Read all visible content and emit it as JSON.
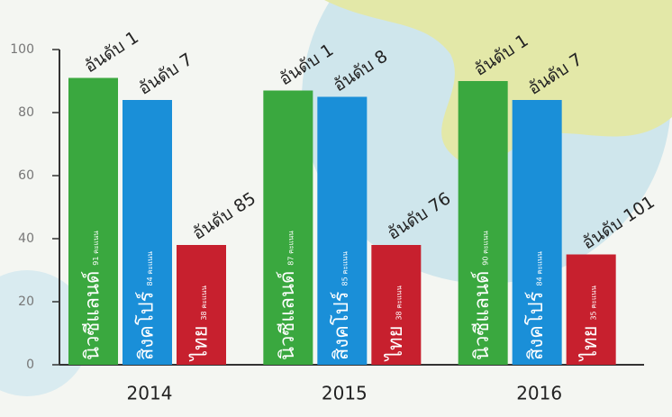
{
  "chart_data": {
    "type": "bar",
    "categories": [
      "2014",
      "2015",
      "2016"
    ],
    "series": [
      {
        "name": "นิวซีแลนด์",
        "color": "#3aa83f",
        "values": [
          91,
          87,
          90
        ],
        "value_labels": [
          "91 คะแนน",
          "87 คะแนน",
          "90 คะแนน"
        ],
        "rank_labels": [
          "อันดับ 1",
          "อันดับ 1",
          "อันดับ 1"
        ]
      },
      {
        "name": "สิงคโปร์",
        "color": "#1a8fd8",
        "values": [
          84,
          85,
          84
        ],
        "value_labels": [
          "84 คะแนน",
          "85 คะแนน",
          "84 คะแนน"
        ],
        "rank_labels": [
          "อันดับ 7",
          "อันดับ 8",
          "อันดับ 7"
        ]
      },
      {
        "name": "ไทย",
        "color": "#c7202e",
        "values": [
          38,
          38,
          35
        ],
        "value_labels": [
          "38 คะแนน",
          "38 คะแนน",
          "35 คะแนน"
        ],
        "rank_labels": [
          "อันดับ 85",
          "อันดับ 76",
          "อันดับ 101"
        ]
      }
    ],
    "ylim": [
      0,
      100
    ],
    "yticks": [
      0,
      20,
      40,
      60,
      80,
      100
    ]
  }
}
